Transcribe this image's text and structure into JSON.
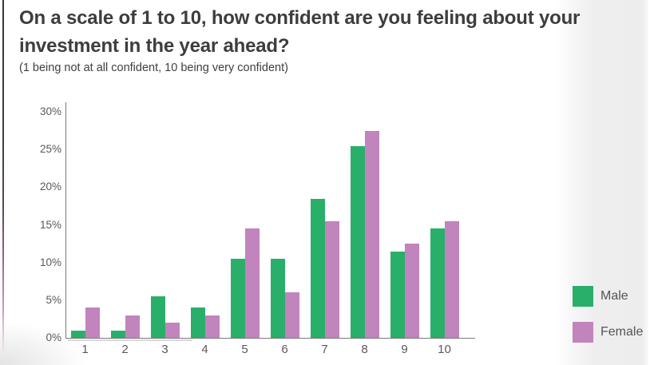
{
  "header": {
    "title_lines": [
      "On a scale of 1 to 10, how confident are you feeling about your",
      "investment in the year ahead?"
    ],
    "subtitle": "(1 being not at all confident, 10 being very confident)"
  },
  "chart_data": {
    "type": "bar",
    "title": "On a scale of 1 to 10, how confident are you feeling about your investment in the year ahead?",
    "subtitle": "(1 being not at all confident, 10 being very confident)",
    "categories": [
      "1",
      "2",
      "3",
      "4",
      "5",
      "6",
      "7",
      "8",
      "9",
      "10"
    ],
    "series": [
      {
        "name": "Male",
        "color": "#2aaf6b",
        "values": [
          1,
          1,
          5.5,
          4,
          10.5,
          10.5,
          18.5,
          25.5,
          11.5,
          14.5
        ]
      },
      {
        "name": "Female",
        "color": "#c184bd",
        "values": [
          4,
          3,
          2,
          3,
          14.5,
          6,
          15.5,
          27.5,
          12.5,
          15.5
        ]
      }
    ],
    "xlabel": "",
    "ylabel": "",
    "ylim": [
      0,
      30
    ],
    "ytick_step": 5,
    "ytick_labels": [
      "0%",
      "5%",
      "10%",
      "15%",
      "20%",
      "25%",
      "30%"
    ],
    "grid": false,
    "legend_position": "right",
    "legend": [
      {
        "label": "Male",
        "color": "#2aaf6b"
      },
      {
        "label": "Female",
        "color": "#c184bd"
      }
    ]
  },
  "colors": {
    "male_bar": "#2aaf6b",
    "female_bar": "#c184bd",
    "axis": "#7a7a7a",
    "tick_text": "#595959",
    "title_text": "#3d3d3d"
  }
}
